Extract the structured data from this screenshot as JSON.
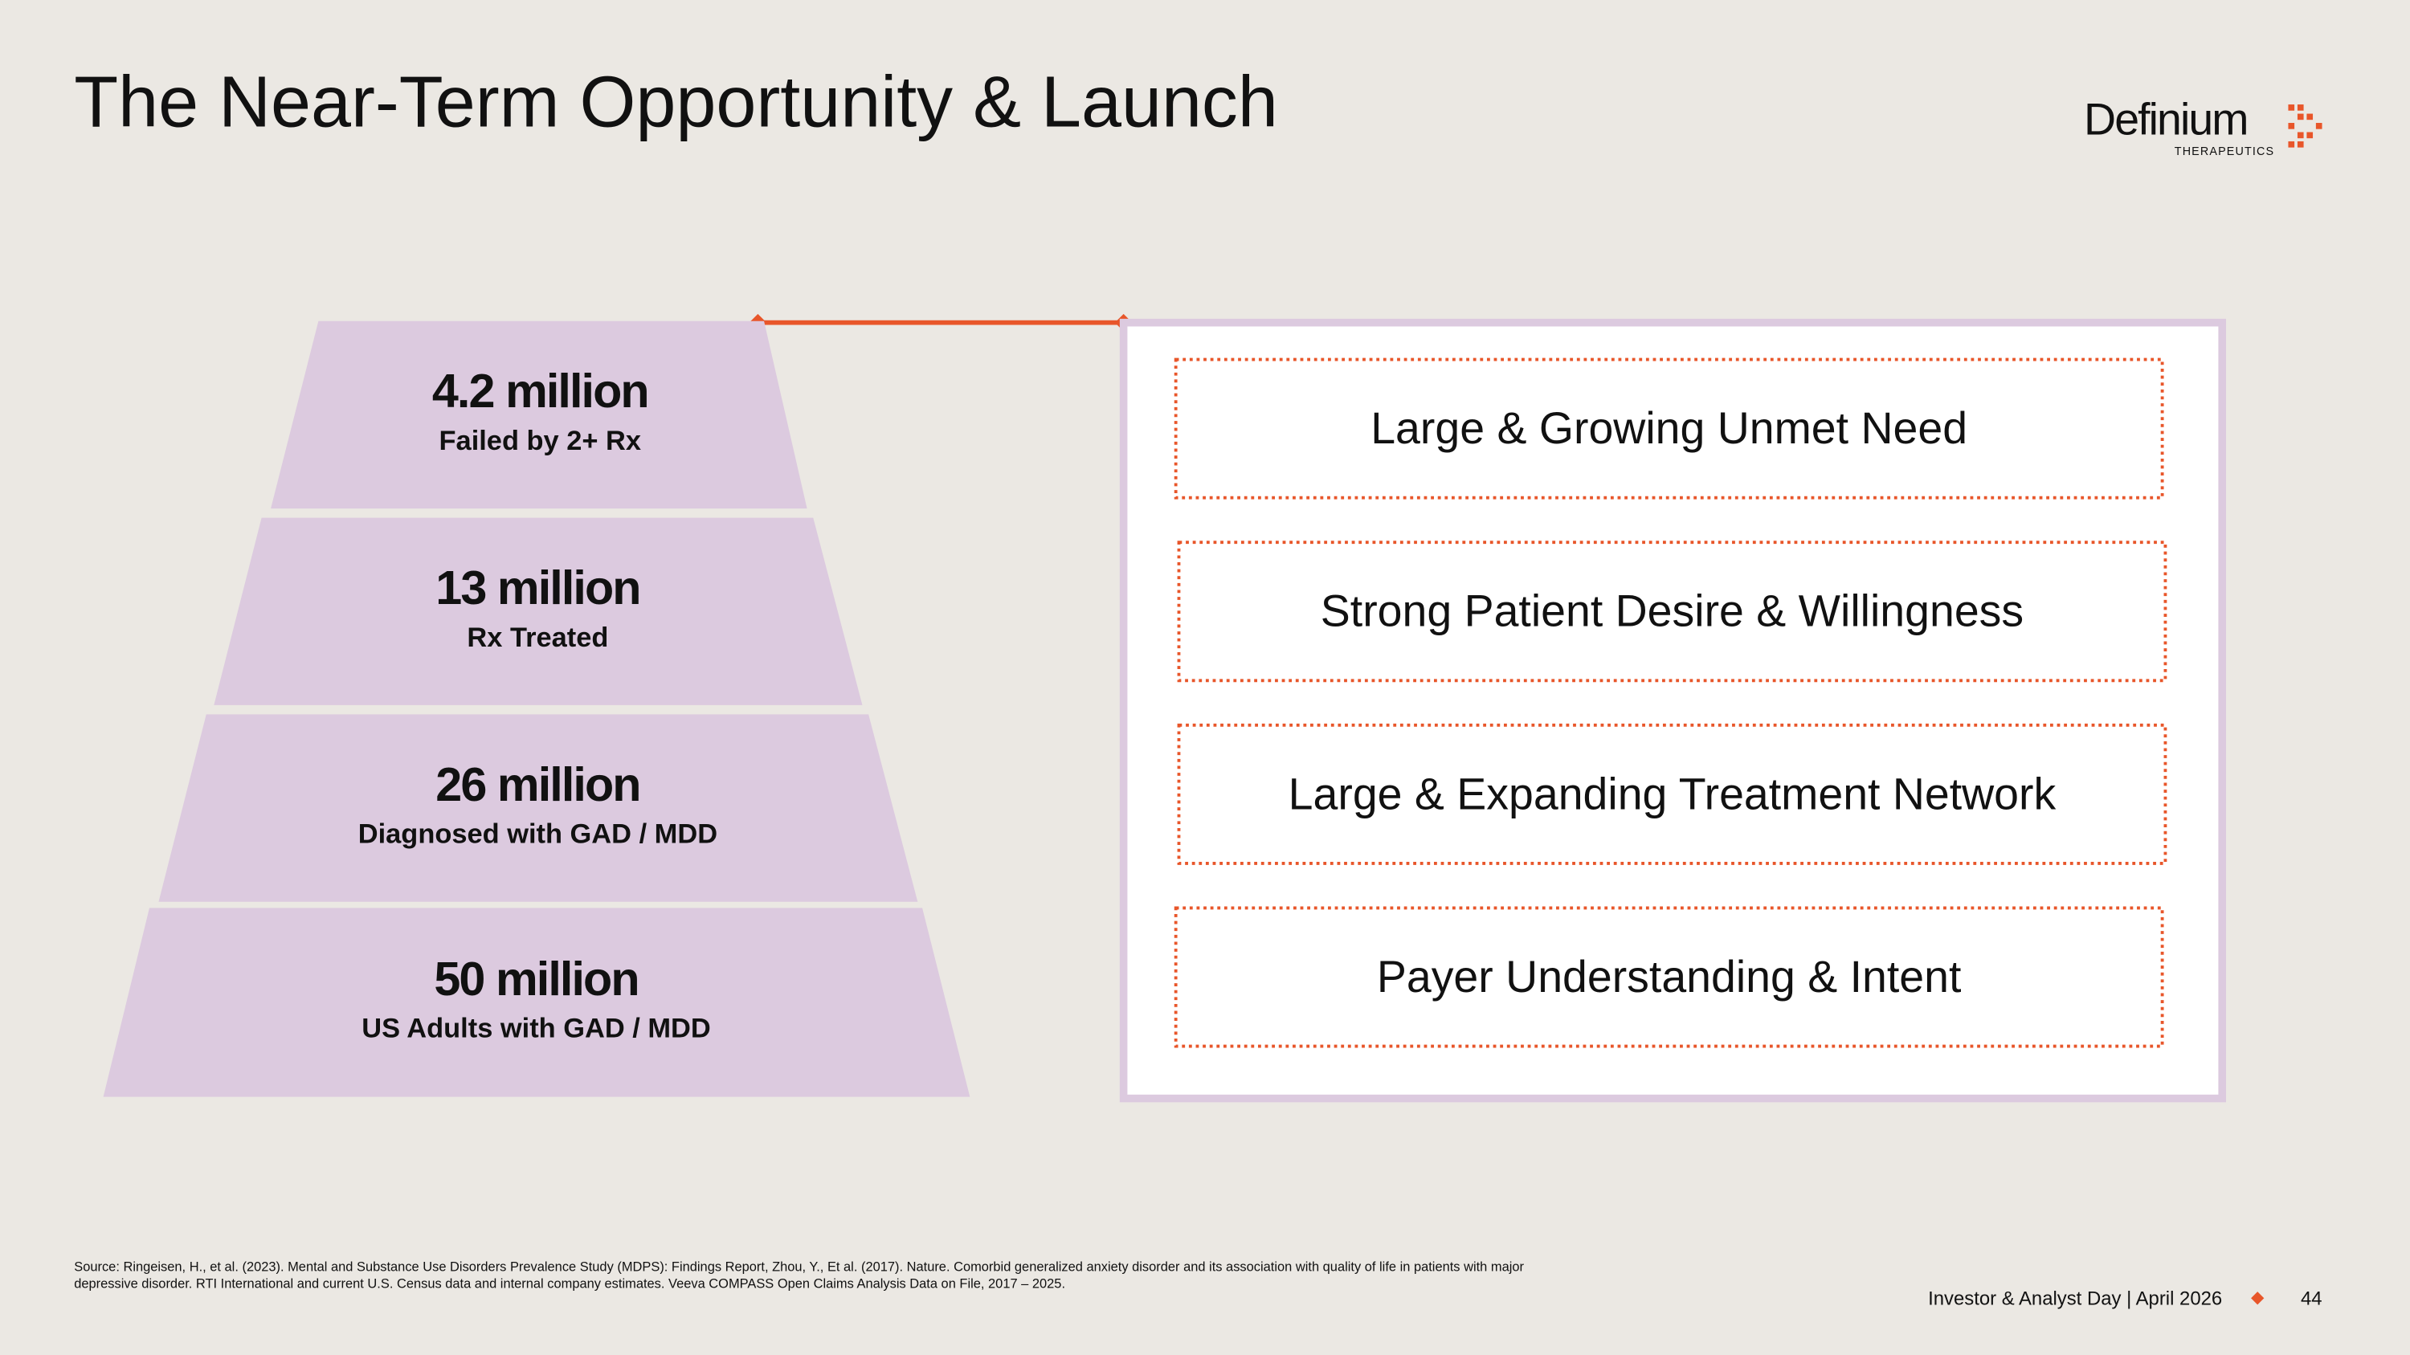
{
  "title": "The Near-Term Opportunity & Launch",
  "logo": {
    "name": "Definium",
    "subtitle": "THERAPEUTICS"
  },
  "funnel": [
    {
      "value": "4.2 million",
      "label": "Failed by 2+ Rx"
    },
    {
      "value": "13 million",
      "label": "Rx Treated"
    },
    {
      "value": "26 million",
      "label": "Diagnosed with GAD / MDD"
    },
    {
      "value": "50 million",
      "label": "US Adults with GAD / MDD"
    }
  ],
  "pillars": [
    "Large & Growing Unmet Need",
    "Strong Patient Desire & Willingness",
    "Large & Expanding Treatment Network",
    "Payer Understanding & Intent"
  ],
  "source": [
    "Source:  Ringeisen, H., et al. (2023). Mental and Substance Use Disorders Prevalence Study (MDPS): Findings Report,  Zhou, Y., Et al. (2017). Nature. Comorbid generalized anxiety disorder and its association with quality of life in patients with major",
    "depressive disorder. RTI International and current U.S. Census data and internal company estimates. Veeva COMPASS Open Claims Analysis Data on File, 2017 – 2025."
  ],
  "footer": {
    "event": "Investor & Analyst Day | April 2026",
    "page": "44"
  }
}
